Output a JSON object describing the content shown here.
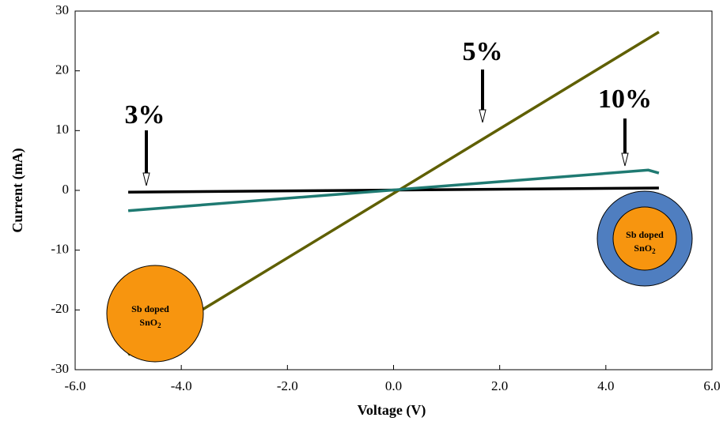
{
  "chart_data": {
    "type": "line",
    "xlabel": "Voltage (V)",
    "ylabel": "Current (mA)",
    "xlim": [
      -6,
      6
    ],
    "ylim": [
      -30,
      30
    ],
    "xticks": [
      {
        "value": -6,
        "label": "-6.0"
      },
      {
        "value": -4,
        "label": "-4.0"
      },
      {
        "value": -2,
        "label": "-2.0"
      },
      {
        "value": 0,
        "label": "0.0"
      },
      {
        "value": 2,
        "label": "2.0"
      },
      {
        "value": 4,
        "label": "4.0"
      },
      {
        "value": 6,
        "label": "6.0"
      }
    ],
    "yticks": [
      30,
      20,
      10,
      0,
      -10,
      -20,
      -30
    ],
    "series": [
      {
        "name": "3%",
        "color": "#000000",
        "x": [
          -5,
          5
        ],
        "values": [
          -0.3,
          0.4
        ]
      },
      {
        "name": "5%",
        "color": "#5f5f00",
        "x": [
          -5,
          5
        ],
        "values": [
          -27.5,
          26.5
        ]
      },
      {
        "name": "10%",
        "color": "#1f7a72",
        "x": [
          -5,
          4.8,
          5
        ],
        "values": [
          -3.4,
          3.4,
          2.9
        ]
      }
    ],
    "particle_labels": [
      {
        "line1": "Sb doped",
        "formula": "SnO",
        "subscript": "2"
      },
      {
        "line1": "Sb doped",
        "formula": "SnO",
        "subscript": "2"
      }
    ]
  }
}
